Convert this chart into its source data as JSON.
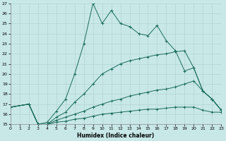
{
  "xlabel": "Humidex (Indice chaleur)",
  "background_color": "#c8e8e8",
  "grid_color": "#b0cccc",
  "line_color": "#1a6b5a",
  "xlim": [
    0,
    23
  ],
  "ylim": [
    15,
    27
  ],
  "xticks": [
    0,
    1,
    2,
    3,
    4,
    5,
    6,
    7,
    8,
    9,
    10,
    11,
    12,
    13,
    14,
    15,
    16,
    17,
    18,
    19,
    20,
    21,
    22,
    23
  ],
  "yticks": [
    15,
    16,
    17,
    18,
    19,
    20,
    21,
    22,
    23,
    24,
    25,
    26,
    27
  ],
  "series": [
    {
      "x": [
        0,
        2,
        3,
        4,
        5,
        6,
        7,
        8,
        9,
        10,
        11,
        12,
        13,
        14,
        15,
        16,
        17,
        18,
        19,
        20,
        21,
        22,
        23
      ],
      "y": [
        16.7,
        17.0,
        15.0,
        15.2,
        16.3,
        17.5,
        20.0,
        23.0,
        27.0,
        25.0,
        26.3,
        25.0,
        24.7,
        24.0,
        23.8,
        24.8,
        23.3,
        22.3,
        20.3,
        20.6,
        18.3,
        17.5,
        16.4
      ]
    },
    {
      "x": [
        0,
        2,
        3,
        4,
        5,
        6,
        7,
        8,
        9,
        10,
        11,
        12,
        13,
        14,
        15,
        16,
        17,
        18,
        19,
        20,
        21,
        22,
        23
      ],
      "y": [
        16.7,
        17.0,
        15.0,
        15.0,
        15.7,
        16.2,
        17.2,
        18.0,
        19.0,
        20.0,
        20.5,
        21.0,
        21.3,
        21.5,
        21.7,
        21.9,
        22.0,
        22.2,
        22.3,
        20.6,
        18.3,
        17.5,
        16.4
      ]
    },
    {
      "x": [
        0,
        2,
        3,
        4,
        5,
        6,
        7,
        8,
        9,
        10,
        11,
        12,
        13,
        14,
        15,
        16,
        17,
        18,
        19,
        20,
        21,
        22,
        23
      ],
      "y": [
        16.7,
        17.0,
        15.0,
        15.0,
        15.4,
        15.7,
        16.0,
        16.3,
        16.7,
        17.0,
        17.3,
        17.5,
        17.8,
        18.0,
        18.2,
        18.4,
        18.5,
        18.7,
        19.0,
        19.3,
        18.3,
        17.5,
        16.4
      ]
    },
    {
      "x": [
        0,
        2,
        3,
        4,
        5,
        6,
        7,
        8,
        9,
        10,
        11,
        12,
        13,
        14,
        15,
        16,
        17,
        18,
        19,
        20,
        21,
        22,
        23
      ],
      "y": [
        16.7,
        17.0,
        15.0,
        15.0,
        15.2,
        15.3,
        15.5,
        15.6,
        15.8,
        16.0,
        16.1,
        16.2,
        16.3,
        16.4,
        16.5,
        16.5,
        16.6,
        16.7,
        16.7,
        16.7,
        16.4,
        16.2,
        16.2
      ]
    }
  ]
}
